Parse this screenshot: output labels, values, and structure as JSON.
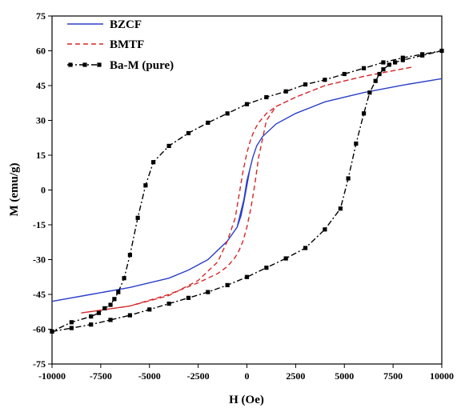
{
  "chart_data": {
    "type": "line",
    "xlabel": "H (Oe)",
    "ylabel": "M (emu/g)",
    "xlim": [
      -10000,
      10000
    ],
    "ylim": [
      -75,
      75
    ],
    "x_ticks": [
      -10000,
      -7500,
      -5000,
      -2500,
      0,
      2500,
      5000,
      7500,
      10000
    ],
    "y_ticks": [
      -75,
      -60,
      -45,
      -30,
      -15,
      0,
      15,
      30,
      45,
      60,
      75
    ],
    "grid": false,
    "legend_position": "top-left",
    "series": [
      {
        "name": "BZCF",
        "color": "#2b3fc9",
        "style": "solid",
        "x": [
          -10000,
          -8000,
          -6000,
          -4000,
          -3000,
          -2000,
          -1000,
          -500,
          -300,
          -150,
          0,
          150,
          300,
          500,
          800,
          1500,
          2500,
          4000,
          6000,
          8000,
          10000,
          8000,
          6000,
          4000,
          2500,
          1500,
          800,
          500,
          300,
          150,
          0,
          -150,
          -300,
          -500,
          -1000,
          -2000,
          -3000,
          -4000,
          -6000,
          -8000,
          -10000
        ],
        "y": [
          -48,
          -45,
          -42,
          -38,
          -34.5,
          -30,
          -22,
          -16,
          -11,
          -5,
          2,
          9,
          14,
          19,
          23,
          28.5,
          33,
          38,
          42,
          45.2,
          48,
          45.2,
          42,
          38,
          33,
          28.5,
          23,
          19,
          14,
          9,
          4,
          -4,
          -9,
          -16,
          -22,
          -30,
          -34.5,
          -38,
          -42,
          -45,
          -48
        ]
      },
      {
        "name": "BMTF",
        "color": "#d62728",
        "style": "dashed",
        "x": [
          -8500,
          -6000,
          -4000,
          -2500,
          -1500,
          -1000,
          -600,
          -400,
          -200,
          0,
          200,
          400,
          600,
          800,
          1000,
          1500,
          2500,
          4000,
          6000,
          8500,
          6000,
          4000,
          2500,
          1500,
          1000,
          600,
          400,
          200,
          0,
          -200,
          -400,
          -600,
          -1000,
          -1500,
          -2500,
          -4000,
          -6000,
          -8500
        ],
        "y": [
          -53,
          -50,
          -45.5,
          -39,
          -31,
          -22,
          -12,
          -2,
          8,
          16,
          22,
          26,
          29,
          31,
          33,
          36,
          40,
          45,
          49,
          53,
          49,
          45,
          40,
          36,
          30,
          14,
          2,
          -8,
          -16,
          -22,
          -26,
          -29,
          -33,
          -36,
          -40,
          -45,
          -50,
          -53
        ]
      },
      {
        "name": "Ba-M (pure)",
        "color": "#000000",
        "style": "dash-dot with square markers",
        "x": [
          -10000,
          -9000,
          -8000,
          -7000,
          -6000,
          -5000,
          -4000,
          -3000,
          -2000,
          -1000,
          0,
          1000,
          2000,
          3000,
          4000,
          4800,
          5200,
          5600,
          6000,
          6300,
          6600,
          6800,
          7000,
          7300,
          7600,
          8000,
          9000,
          10000,
          9000,
          8000,
          7000,
          6000,
          5000,
          4000,
          3000,
          2000,
          1000,
          0,
          -1000,
          -2000,
          -3000,
          -4000,
          -4800,
          -5200,
          -5600,
          -6000,
          -6300,
          -6600,
          -6800,
          -7000,
          -7300,
          -7600,
          -8000,
          -9000,
          -10000
        ],
        "y": [
          -61,
          -59.5,
          -58,
          -56,
          -54,
          -51.5,
          -49,
          -46.5,
          -44,
          -41,
          -37.5,
          -33.5,
          -29.5,
          -25,
          -17,
          -8,
          5,
          20,
          33,
          42,
          47,
          50,
          52,
          54,
          55,
          56,
          58,
          60,
          58.5,
          57,
          55,
          52.5,
          50,
          47.5,
          45.5,
          42.5,
          40,
          37,
          33,
          29,
          24.5,
          19,
          12,
          2,
          -12,
          -28,
          -38,
          -44,
          -47,
          -49.5,
          -51,
          -53,
          -54.5,
          -57,
          -61
        ]
      }
    ]
  }
}
